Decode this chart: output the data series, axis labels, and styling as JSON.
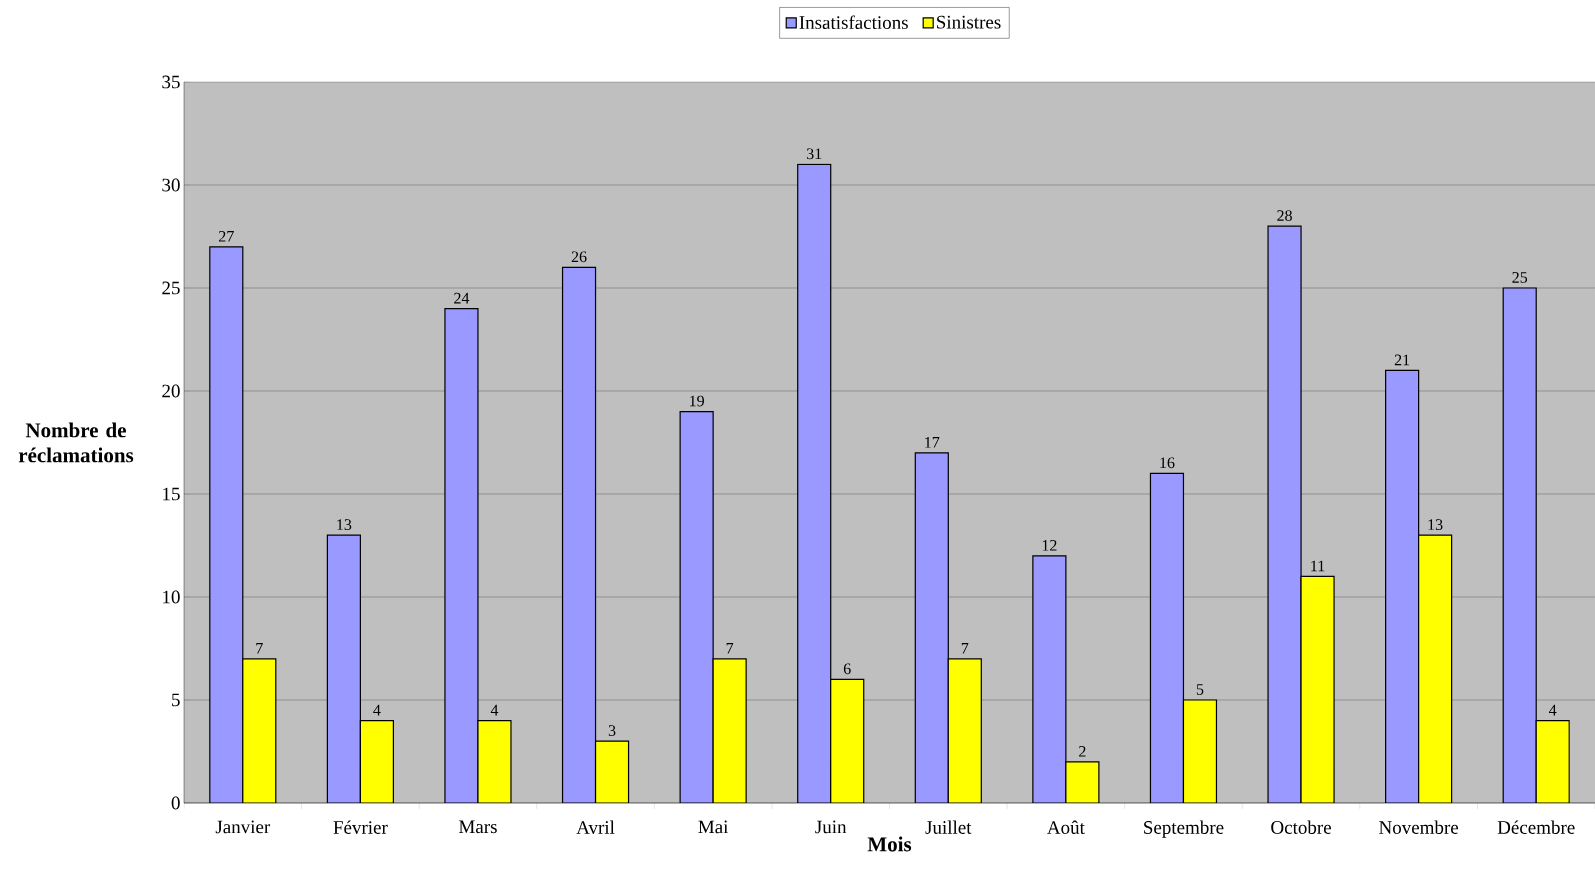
{
  "chart_data": {
    "type": "bar",
    "xlabel": "Mois",
    "ylabel": "Nombre de réclamations",
    "categories": [
      "Janvier",
      "Février",
      "Mars",
      "Avril",
      "Mai",
      "Juin",
      "Juillet",
      "Août",
      "Septembre",
      "Octobre",
      "Novembre",
      "Décembre"
    ],
    "series": [
      {
        "name": "Insatisfactions",
        "color": "#9999ff",
        "values": [
          27,
          13,
          24,
          26,
          19,
          31,
          17,
          12,
          16,
          28,
          21,
          25
        ]
      },
      {
        "name": "Sinistres",
        "color": "#ffff00",
        "values": [
          7,
          4,
          4,
          3,
          7,
          6,
          7,
          2,
          5,
          11,
          13,
          4
        ]
      }
    ],
    "ylim": [
      0,
      35
    ],
    "yticks": [
      0,
      5,
      10,
      15,
      20,
      25,
      30,
      35
    ],
    "grid": "y",
    "legend": "top",
    "data_labels": true
  }
}
